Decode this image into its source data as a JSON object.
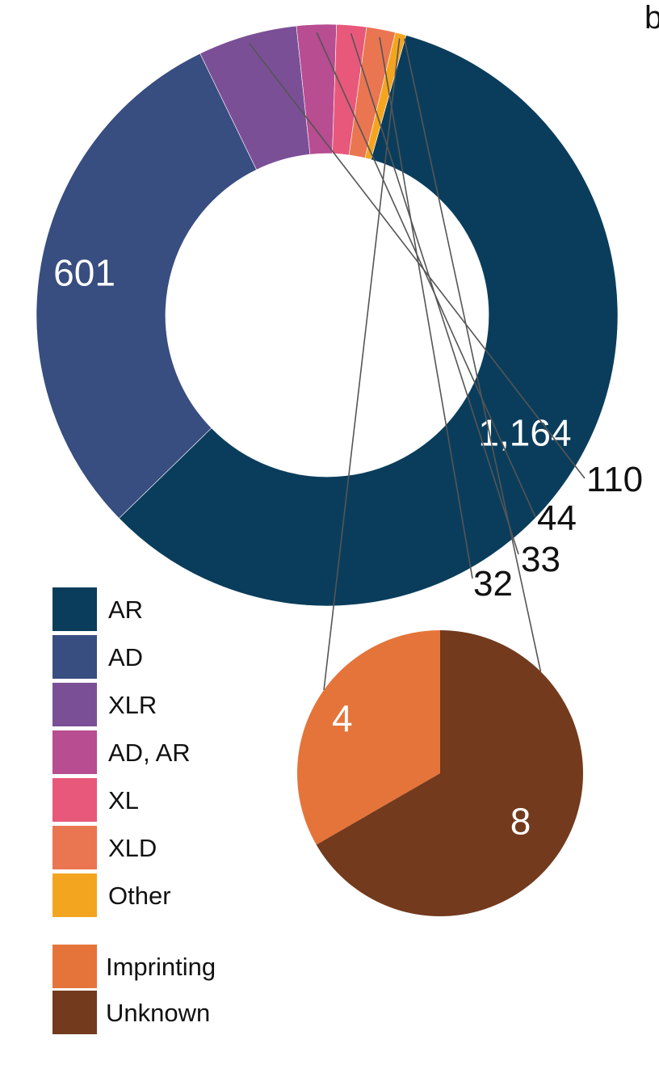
{
  "panel_label": "b",
  "chart_data": [
    {
      "type": "pie",
      "variant": "donut",
      "categories": [
        "AR",
        "AD",
        "XLR",
        "AD, AR",
        "XL",
        "XLD",
        "Other"
      ],
      "values": [
        1164,
        601,
        110,
        44,
        33,
        32,
        12
      ],
      "value_labels": [
        "1,164",
        "601",
        "110",
        "44",
        "33",
        "32",
        ""
      ],
      "colors": [
        "#0a3d5c",
        "#384d80",
        "#7b4f96",
        "#b84d91",
        "#e8587a",
        "#ea7651",
        "#f4a51f"
      ],
      "legend_placement": "bottom-left"
    },
    {
      "type": "pie",
      "note_of": "Other",
      "categories": [
        "Imprinting",
        "Unknown"
      ],
      "values": [
        4,
        8
      ],
      "value_labels": [
        "4",
        "8"
      ],
      "colors": [
        "#e5743a",
        "#733a1d"
      ],
      "legend_placement": "bottom-left"
    }
  ]
}
